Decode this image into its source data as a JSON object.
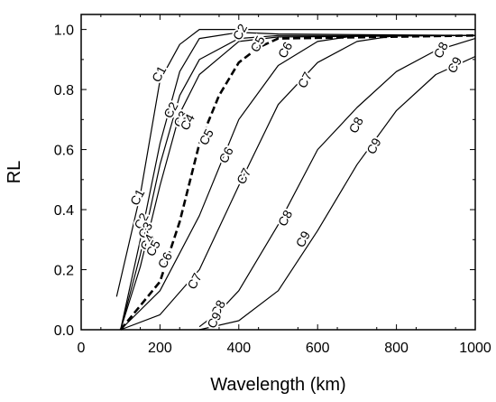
{
  "chart_data": {
    "type": "line",
    "title": "",
    "xlabel": "Wavelength (km)",
    "ylabel": "RL",
    "xlim": [
      0,
      1000
    ],
    "ylim": [
      0,
      1.05
    ],
    "x_ticks": [
      0,
      200,
      400,
      600,
      800,
      1000
    ],
    "y_ticks": [
      0.0,
      0.2,
      0.4,
      0.6,
      0.8,
      1.0
    ],
    "x_tick_labels": [
      "0",
      "200",
      "400",
      "600",
      "800",
      "1000"
    ],
    "y_tick_labels": [
      "0.0",
      "0.2",
      "0.4",
      "0.6",
      "0.8",
      "1.0"
    ],
    "grid": false,
    "legend": "none",
    "series": [
      {
        "name": "C1",
        "style": "solid",
        "label_positions": [
          [
            200,
            0.85
          ],
          [
            145,
            0.44
          ]
        ],
        "points": [
          [
            90,
            0.11
          ],
          [
            150,
            0.45
          ],
          [
            200,
            0.83
          ],
          [
            250,
            0.95
          ],
          [
            300,
            1.0
          ],
          [
            1000,
            1.0
          ]
        ]
      },
      {
        "name": "C2",
        "style": "solid",
        "label_positions": [
          [
            230,
            0.73
          ],
          [
            155,
            0.36
          ],
          [
            405,
            0.99
          ]
        ],
        "points": [
          [
            100,
            0.0
          ],
          [
            150,
            0.3
          ],
          [
            200,
            0.62
          ],
          [
            250,
            0.86
          ],
          [
            300,
            0.97
          ],
          [
            400,
            0.99
          ],
          [
            500,
            0.985
          ],
          [
            1000,
            0.98
          ]
        ]
      },
      {
        "name": "C3",
        "style": "solid",
        "label_positions": [
          [
            255,
            0.7
          ],
          [
            165,
            0.33
          ]
        ],
        "points": [
          [
            100,
            0.0
          ],
          [
            150,
            0.25
          ],
          [
            200,
            0.55
          ],
          [
            250,
            0.78
          ],
          [
            300,
            0.9
          ],
          [
            400,
            0.97
          ],
          [
            500,
            0.98
          ],
          [
            1000,
            0.98
          ]
        ]
      },
      {
        "name": "C4",
        "style": "solid",
        "label_positions": [
          [
            272,
            0.69
          ],
          [
            170,
            0.29
          ]
        ],
        "points": [
          [
            100,
            0.0
          ],
          [
            150,
            0.21
          ],
          [
            200,
            0.48
          ],
          [
            250,
            0.72
          ],
          [
            300,
            0.85
          ],
          [
            400,
            0.96
          ],
          [
            500,
            0.975
          ],
          [
            1000,
            0.98
          ]
        ]
      },
      {
        "name": "C5",
        "style": "dashed",
        "label_positions": [
          [
            320,
            0.64
          ],
          [
            185,
            0.27
          ],
          [
            450,
            0.95
          ]
        ],
        "points": [
          [
            100,
            0.0
          ],
          [
            200,
            0.16
          ],
          [
            250,
            0.36
          ],
          [
            300,
            0.62
          ],
          [
            350,
            0.78
          ],
          [
            400,
            0.89
          ],
          [
            450,
            0.94
          ],
          [
            500,
            0.97
          ],
          [
            1000,
            0.98
          ]
        ]
      },
      {
        "name": "C6",
        "style": "solid",
        "label_positions": [
          [
            370,
            0.58
          ],
          [
            215,
            0.23
          ],
          [
            520,
            0.93
          ]
        ],
        "points": [
          [
            100,
            0.0
          ],
          [
            200,
            0.13
          ],
          [
            300,
            0.38
          ],
          [
            400,
            0.7
          ],
          [
            500,
            0.88
          ],
          [
            600,
            0.96
          ],
          [
            700,
            0.98
          ],
          [
            1000,
            0.98
          ]
        ]
      },
      {
        "name": "C7",
        "style": "solid",
        "label_positions": [
          [
            415,
            0.51
          ],
          [
            290,
            0.16
          ],
          [
            570,
            0.83
          ]
        ],
        "points": [
          [
            100,
            0.0
          ],
          [
            200,
            0.05
          ],
          [
            300,
            0.2
          ],
          [
            400,
            0.48
          ],
          [
            500,
            0.75
          ],
          [
            600,
            0.89
          ],
          [
            700,
            0.96
          ],
          [
            800,
            0.98
          ],
          [
            1000,
            0.98
          ]
        ]
      },
      {
        "name": "C8",
        "style": "solid",
        "label_positions": [
          [
            520,
            0.37
          ],
          [
            350,
            0.07
          ],
          [
            700,
            0.68
          ],
          [
            915,
            0.93
          ]
        ],
        "points": [
          [
            300,
            0.01
          ],
          [
            350,
            0.06
          ],
          [
            400,
            0.13
          ],
          [
            500,
            0.35
          ],
          [
            600,
            0.6
          ],
          [
            700,
            0.74
          ],
          [
            800,
            0.86
          ],
          [
            900,
            0.93
          ],
          [
            1000,
            0.97
          ]
        ]
      },
      {
        "name": "C9",
        "style": "solid",
        "label_positions": [
          [
            565,
            0.3
          ],
          [
            340,
            0.03
          ],
          [
            745,
            0.61
          ],
          [
            950,
            0.88
          ]
        ],
        "points": [
          [
            300,
            0.0
          ],
          [
            400,
            0.03
          ],
          [
            500,
            0.13
          ],
          [
            600,
            0.33
          ],
          [
            700,
            0.55
          ],
          [
            800,
            0.73
          ],
          [
            900,
            0.85
          ],
          [
            1000,
            0.91
          ]
        ]
      }
    ]
  }
}
